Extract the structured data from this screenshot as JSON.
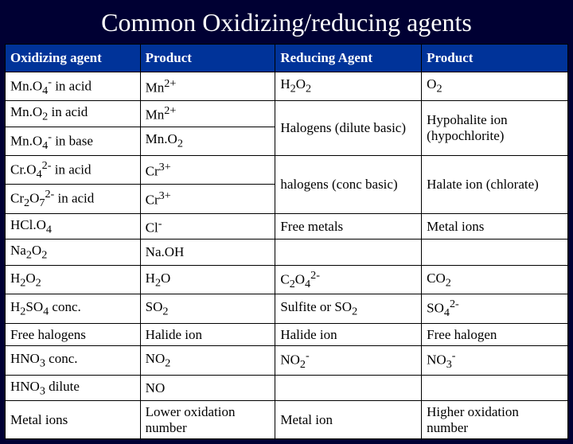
{
  "title": "Common Oxidizing/reducing agents",
  "headers": [
    "Oxidizing agent",
    "Product",
    "Reducing Agent",
    "Product"
  ],
  "rows": [
    {
      "c0": "Mn.O<sub>4</sub><sup>-</sup> in acid",
      "c1": "Mn<sup>2+</sup>",
      "c2": "H<sub>2</sub>O<sub>2</sub>",
      "c3": "O<sub>2</sub>",
      "span2": 1,
      "span3": 1
    },
    {
      "c0": "Mn.O<sub>2</sub> in acid",
      "c1": "Mn<sup>2+</sup>",
      "c2": "Halogens (dilute basic)",
      "c3": "Hypohalite ion (hypochlorite)",
      "span2": 2,
      "span3": 2
    },
    {
      "c0": "Mn.O<sub>4</sub><sup>-</sup> in base",
      "c1": "Mn.O<sub>2</sub>"
    },
    {
      "c0": "Cr.O<sub>4</sub><sup>2-</sup> in acid",
      "c1": "Cr<sup>3+</sup>",
      "c2": "halogens (conc basic)",
      "c3": "Halate ion (chlorate)",
      "span2": 2,
      "span3": 2
    },
    {
      "c0": "Cr<sub>2</sub>O<sub>7</sub><sup>2-</sup> in acid",
      "c1": "Cr<sup>3+</sup>"
    },
    {
      "c0": "HCl.O<sub>4</sub>",
      "c1": "Cl<sup>-</sup>",
      "c2": "Free metals",
      "c3": "Metal ions",
      "span2": 1,
      "span3": 1
    },
    {
      "c0": "Na<sub>2</sub>O<sub>2</sub>",
      "c1": "Na.OH",
      "c2": "",
      "c3": "",
      "span2": 1,
      "span3": 1
    },
    {
      "c0": "H<sub>2</sub>O<sub>2</sub>",
      "c1": "H<sub>2</sub>O",
      "c2": "C<sub>2</sub>O<sub>4</sub><sup>2-</sup>",
      "c3": "CO<sub>2</sub>",
      "span2": 1,
      "span3": 1
    },
    {
      "c0": "H<sub>2</sub>SO<sub>4</sub> conc.",
      "c1": "SO<sub>2</sub>",
      "c2": "Sulfite or SO<sub>2</sub>",
      "c3": "SO<sub>4</sub><sup>2-</sup>",
      "span2": 1,
      "span3": 1
    },
    {
      "c0": "Free halogens",
      "c1": "Halide ion",
      "c2": "Halide ion",
      "c3": "Free halogen",
      "span2": 1,
      "span3": 1
    },
    {
      "c0": "HNO<sub>3</sub> conc.",
      "c1": "NO<sub>2</sub>",
      "c2": "NO<sub>2</sub><sup>-</sup>",
      "c3": "NO<sub>3</sub><sup>-</sup>",
      "span2": 1,
      "span3": 1
    },
    {
      "c0": "HNO<sub>3</sub> dilute",
      "c1": "NO",
      "c2": "",
      "c3": "",
      "span2": 1,
      "span3": 1
    },
    {
      "c0": "Metal ions",
      "c1": "Lower oxidation number",
      "c2": "Metal ion",
      "c3": "Higher oxidation number",
      "span2": 1,
      "span3": 1
    }
  ],
  "style": {
    "slide_bg": "#000033",
    "title_color": "#ffffff",
    "title_fontsize": 32,
    "header_bg": "#003399",
    "header_text": "#ffffff",
    "cell_bg": "#ffffff",
    "cell_text": "#000000",
    "border_color": "#000000",
    "cell_fontsize": 17,
    "col_widths_pct": [
      24,
      24,
      26,
      26
    ]
  }
}
